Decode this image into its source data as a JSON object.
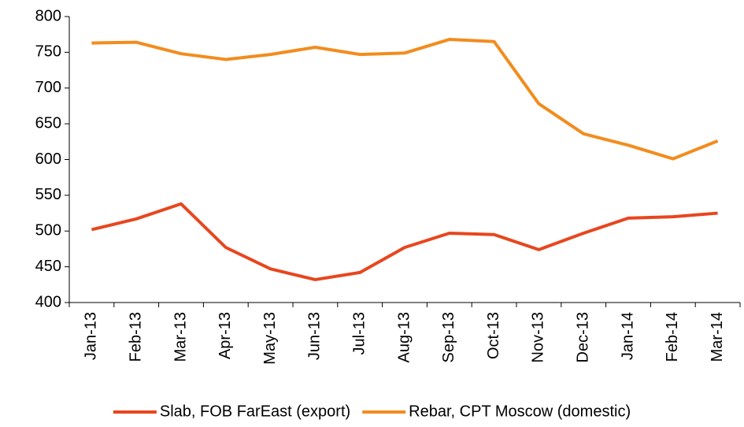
{
  "chart_data": {
    "type": "line",
    "categories": [
      "Jan-13",
      "Feb-13",
      "Mar-13",
      "Apr-13",
      "May-13",
      "Jun-13",
      "Jul-13",
      "Aug-13",
      "Sep-13",
      "Oct-13",
      "Nov-13",
      "Dec-13",
      "Jan-14",
      "Feb-14",
      "Mar-14"
    ],
    "series": [
      {
        "name": "Slab, FOB FarEast (export)",
        "color": "#e8461e",
        "values": [
          502,
          517,
          538,
          477,
          447,
          432,
          442,
          477,
          497,
          495,
          474,
          497,
          518,
          520,
          525
        ]
      },
      {
        "name": "Rebar, CPT Moscow (domestic)",
        "color": "#f28c1e",
        "values": [
          763,
          764,
          748,
          740,
          747,
          757,
          747,
          749,
          768,
          765,
          678,
          636,
          620,
          601,
          626
        ]
      }
    ],
    "ylim": [
      400,
      800
    ],
    "yticks": [
      400,
      450,
      500,
      550,
      600,
      650,
      700,
      750,
      800
    ],
    "grid": false,
    "legend": "bottom"
  }
}
